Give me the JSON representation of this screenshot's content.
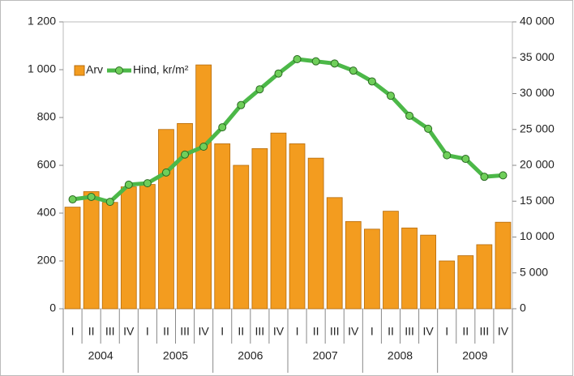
{
  "chart_data": {
    "type": "bar_line",
    "categories": [
      "I",
      "II",
      "III",
      "IV",
      "I",
      "II",
      "III",
      "IV",
      "I",
      "II",
      "III",
      "IV",
      "I",
      "II",
      "III",
      "IV",
      "I",
      "II",
      "III",
      "IV",
      "I",
      "II",
      "III",
      "IV"
    ],
    "category_groups": [
      "2004",
      "2005",
      "2006",
      "2007",
      "2008",
      "2009"
    ],
    "series": [
      {
        "name": "Arv",
        "type": "bar",
        "color": "#f39c1f",
        "axis": "y",
        "values": [
          425,
          490,
          445,
          510,
          520,
          750,
          775,
          1020,
          690,
          600,
          670,
          735,
          690,
          630,
          465,
          365,
          333,
          408,
          338,
          308,
          200,
          222,
          268,
          362
        ]
      },
      {
        "name": "Hind, kr/m²",
        "type": "line",
        "color": "#4cb848",
        "axis": "y2",
        "values": [
          15250,
          15600,
          14900,
          17300,
          17500,
          19000,
          21500,
          22600,
          25300,
          28400,
          30600,
          32800,
          34800,
          34500,
          34200,
          33200,
          31700,
          29700,
          26900,
          25100,
          21400,
          20900,
          18400,
          18600
        ]
      }
    ],
    "ylim": [
      0,
      1200
    ],
    "yticks": [
      0,
      200,
      400,
      600,
      800,
      {
        "value": 1000,
        "label": "1 000"
      },
      {
        "value": 1200,
        "label": "1 200"
      }
    ],
    "y2lim": [
      0,
      40000
    ],
    "y2ticks": [
      0,
      {
        "value": 5000,
        "label": "5 000"
      },
      {
        "value": 10000,
        "label": "10 000"
      },
      {
        "value": 15000,
        "label": "15 000"
      },
      {
        "value": 20000,
        "label": "20 000"
      },
      {
        "value": 25000,
        "label": "25 000"
      },
      {
        "value": 30000,
        "label": "30 000"
      },
      {
        "value": 35000,
        "label": "35 000"
      },
      {
        "value": 40000,
        "label": "40 000"
      }
    ],
    "grid": false,
    "legend": "upper left"
  }
}
